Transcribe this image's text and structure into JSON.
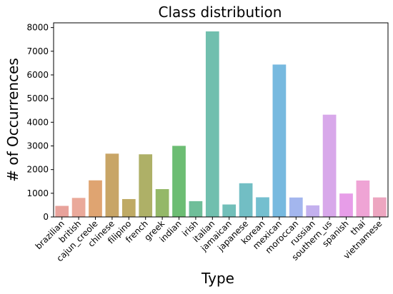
{
  "chart_data": {
    "type": "bar",
    "title": "Class distribution",
    "xlabel": "Type",
    "ylabel": "# of Occurrences",
    "ylim": [
      0,
      8200
    ],
    "yticks": [
      0,
      1000,
      2000,
      3000,
      4000,
      5000,
      6000,
      7000,
      8000
    ],
    "grid": false,
    "categories": [
      "brazilian",
      "british",
      "cajun_creole",
      "chinese",
      "filipino",
      "french",
      "greek",
      "indian",
      "irish",
      "italian",
      "jamaican",
      "japanese",
      "korean",
      "mexican",
      "moroccan",
      "russian",
      "southern_us",
      "spanish",
      "thai",
      "vietnamese"
    ],
    "values": [
      467,
      804,
      1546,
      2673,
      755,
      2646,
      1175,
      3003,
      667,
      7838,
      526,
      1423,
      830,
      6438,
      821,
      489,
      4320,
      989,
      1539,
      825
    ],
    "colors": [
      "#e8a29b",
      "#eaa99a",
      "#dfa471",
      "#c8a566",
      "#bfaa64",
      "#aeb067",
      "#94b868",
      "#6cbd73",
      "#6fbe99",
      "#71bfae",
      "#72bfb9",
      "#72bec4",
      "#74bfcf",
      "#77b9df",
      "#a3b6ee",
      "#c3b0ee",
      "#d8a8ea",
      "#e79de8",
      "#efa4d5",
      "#eda6c0"
    ]
  }
}
